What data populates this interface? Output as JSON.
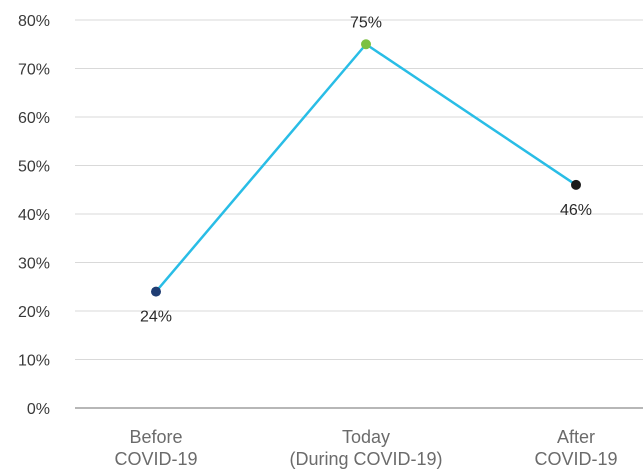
{
  "chart_data": {
    "type": "line",
    "categories": [
      [
        "Before",
        "COVID-19"
      ],
      [
        "Today",
        "(During COVID-19)"
      ],
      [
        "After",
        "COVID-19"
      ]
    ],
    "values": [
      24,
      75,
      46
    ],
    "data_labels": [
      "24%",
      "75%",
      "46%"
    ],
    "y_tick_labels": [
      "0%",
      "10%",
      "20%",
      "30%",
      "40%",
      "50%",
      "60%",
      "70%",
      "80%"
    ],
    "ylim": [
      0,
      80
    ],
    "y_step": 10,
    "grid": true,
    "line_color": "#29bde6",
    "point_colors": [
      "#1f3d73",
      "#7cc142",
      "#1a1a1a"
    ]
  }
}
